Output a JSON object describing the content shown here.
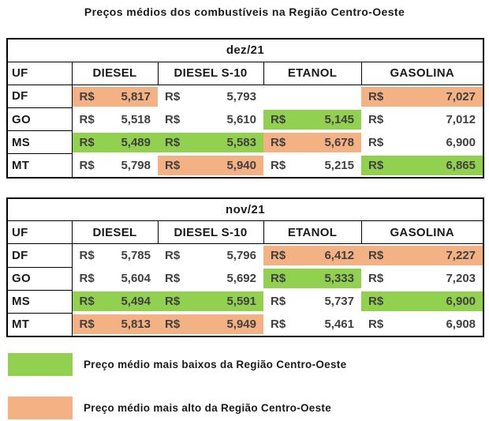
{
  "title": "Preços médios dos combustíveis na Região Centro-Oeste",
  "colors": {
    "low": "#92d050",
    "high": "#f4b183"
  },
  "columns": [
    "UF",
    "DIESEL",
    "DIESEL S-10",
    "ETANOL",
    "GASOLINA"
  ],
  "tables": [
    {
      "month": "dez/21",
      "rows": [
        {
          "uf": "DF",
          "cells": [
            {
              "currency": "R$",
              "value": "5,817",
              "highlight": "high"
            },
            {
              "currency": "R$",
              "value": "5,793",
              "highlight": "none"
            },
            {
              "currency": "",
              "value": "",
              "highlight": "none"
            },
            {
              "currency": "R$",
              "value": "7,027",
              "highlight": "high"
            }
          ]
        },
        {
          "uf": "GO",
          "cells": [
            {
              "currency": "R$",
              "value": "5,518",
              "highlight": "none"
            },
            {
              "currency": "R$",
              "value": "5,610",
              "highlight": "none"
            },
            {
              "currency": "R$",
              "value": "5,145",
              "highlight": "low"
            },
            {
              "currency": "R$",
              "value": "7,012",
              "highlight": "none"
            }
          ]
        },
        {
          "uf": "MS",
          "cells": [
            {
              "currency": "R$",
              "value": "5,489",
              "highlight": "low"
            },
            {
              "currency": "R$",
              "value": "5,583",
              "highlight": "low"
            },
            {
              "currency": "R$",
              "value": "5,678",
              "highlight": "high"
            },
            {
              "currency": "R$",
              "value": "6,900",
              "highlight": "none"
            }
          ]
        },
        {
          "uf": "MT",
          "cells": [
            {
              "currency": "R$",
              "value": "5,798",
              "highlight": "none"
            },
            {
              "currency": "R$",
              "value": "5,940",
              "highlight": "high"
            },
            {
              "currency": "R$",
              "value": "5,215",
              "highlight": "none"
            },
            {
              "currency": "R$",
              "value": "6,865",
              "highlight": "low"
            }
          ]
        }
      ]
    },
    {
      "month": "nov/21",
      "rows": [
        {
          "uf": "DF",
          "cells": [
            {
              "currency": "R$",
              "value": "5,785",
              "highlight": "none"
            },
            {
              "currency": "R$",
              "value": "5,796",
              "highlight": "none"
            },
            {
              "currency": "R$",
              "value": "6,412",
              "highlight": "high"
            },
            {
              "currency": "R$",
              "value": "7,227",
              "highlight": "high"
            }
          ]
        },
        {
          "uf": "GO",
          "cells": [
            {
              "currency": "R$",
              "value": "5,604",
              "highlight": "none"
            },
            {
              "currency": "R$",
              "value": "5,692",
              "highlight": "none"
            },
            {
              "currency": "R$",
              "value": "5,333",
              "highlight": "low"
            },
            {
              "currency": "R$",
              "value": "7,203",
              "highlight": "none"
            }
          ]
        },
        {
          "uf": "MS",
          "cells": [
            {
              "currency": "R$",
              "value": "5,494",
              "highlight": "low"
            },
            {
              "currency": "R$",
              "value": "5,591",
              "highlight": "low"
            },
            {
              "currency": "R$",
              "value": "5,737",
              "highlight": "none"
            },
            {
              "currency": "R$",
              "value": "6,900",
              "highlight": "low"
            }
          ]
        },
        {
          "uf": "MT",
          "cells": [
            {
              "currency": "R$",
              "value": "5,813",
              "highlight": "high"
            },
            {
              "currency": "R$",
              "value": "5,949",
              "highlight": "high"
            },
            {
              "currency": "R$",
              "value": "5,461",
              "highlight": "none"
            },
            {
              "currency": "R$",
              "value": "6,908",
              "highlight": "none"
            }
          ]
        }
      ]
    }
  ],
  "legend": [
    {
      "type": "low",
      "label": "Preço médio mais baixos da Região Centro-Oeste"
    },
    {
      "type": "high",
      "label": "Preço médio mais alto da Região Centro-Oeste"
    }
  ]
}
